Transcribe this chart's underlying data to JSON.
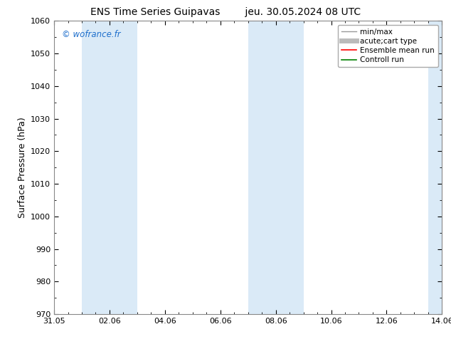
{
  "title": "ENS Time Series Guipavas        jeu. 30.05.2024 08 UTC",
  "ylabel": "Surface Pressure (hPa)",
  "ylim": [
    970,
    1060
  ],
  "yticks": [
    970,
    980,
    990,
    1000,
    1010,
    1020,
    1030,
    1040,
    1050,
    1060
  ],
  "xlim_start": 0,
  "xlim_end": 14,
  "xtick_labels": [
    "31.05",
    "02.06",
    "04.06",
    "06.06",
    "08.06",
    "10.06",
    "12.06",
    "14.06"
  ],
  "xtick_positions": [
    0,
    2,
    4,
    6,
    8,
    10,
    12,
    14
  ],
  "shaded_bands": [
    {
      "x_start": 1,
      "x_end": 3
    },
    {
      "x_start": 7,
      "x_end": 9
    }
  ],
  "right_edge_shade": {
    "x_start": 13.5,
    "x_end": 14
  },
  "shaded_color": "#daeaf7",
  "watermark": "© wofrance.fr",
  "watermark_color": "#1e6fcc",
  "legend_items": [
    {
      "label": "min/max",
      "color": "#999999",
      "lw": 1,
      "style": "solid"
    },
    {
      "label": "acute;cart type",
      "color": "#bbbbbb",
      "lw": 5,
      "style": "solid"
    },
    {
      "label": "Ensemble mean run",
      "color": "#ff0000",
      "lw": 1.2,
      "style": "solid"
    },
    {
      "label": "Controll run",
      "color": "#008000",
      "lw": 1.2,
      "style": "solid"
    }
  ],
  "bg_color": "#ffffff",
  "title_fontsize": 10,
  "tick_fontsize": 8,
  "ylabel_fontsize": 9,
  "legend_fontsize": 7.5
}
